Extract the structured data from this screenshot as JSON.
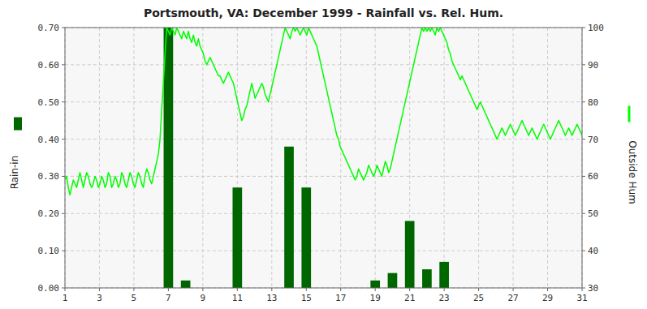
{
  "chart_data": {
    "type": "bar",
    "title": "Portsmouth, VA: December 1999 - Rainfall vs. Rel. Hum.",
    "ylabel": "Rain-in",
    "y2label": "Outside Hum",
    "xlim": [
      1,
      31
    ],
    "xticks": [
      1,
      3,
      5,
      7,
      9,
      11,
      13,
      15,
      17,
      19,
      21,
      23,
      25,
      27,
      29,
      31
    ],
    "ylim": [
      0.0,
      0.7
    ],
    "yticks": [
      {
        "value": 0.0,
        "label": "0.00"
      },
      {
        "value": 0.1,
        "label": "0.10"
      },
      {
        "value": 0.2,
        "label": "0.20"
      },
      {
        "value": 0.3,
        "label": "0.30"
      },
      {
        "value": 0.4,
        "label": "0.40"
      },
      {
        "value": 0.5,
        "label": "0.50"
      },
      {
        "value": 0.6,
        "label": "0.60"
      },
      {
        "value": 0.7,
        "label": "0.70"
      }
    ],
    "y2lim": [
      30,
      100
    ],
    "y2ticks": [
      30,
      40,
      50,
      60,
      70,
      80,
      90,
      100
    ],
    "grid": true,
    "series": [
      {
        "type": "bar",
        "color": "#006600",
        "x": [
          7,
          8,
          11,
          14,
          15,
          19,
          20,
          21,
          22,
          23
        ],
        "values": [
          0.7,
          0.02,
          0.27,
          0.38,
          0.27,
          0.02,
          0.04,
          0.18,
          0.05,
          0.07
        ]
      },
      {
        "type": "line",
        "axis": "y2",
        "color": "#00ff00",
        "x": [
          1,
          1.0968,
          1.1935,
          1.2903,
          1.3871,
          1.4839,
          1.5806,
          1.6774,
          1.7742,
          1.871,
          1.9677,
          2.0645,
          2.1613,
          2.2581,
          2.3548,
          2.4516,
          2.5484,
          2.6452,
          2.7419,
          2.8387,
          2.9355,
          3.0323,
          3.129,
          3.2258,
          3.3226,
          3.4194,
          3.5161,
          3.6129,
          3.7097,
          3.8065,
          3.9032,
          4,
          4.0968,
          4.1935,
          4.2903,
          4.3871,
          4.4839,
          4.5806,
          4.6774,
          4.7742,
          4.871,
          4.9677,
          5.0645,
          5.1613,
          5.2581,
          5.3548,
          5.4516,
          5.5484,
          5.6452,
          5.7419,
          5.8387,
          5.9355,
          6.0323,
          6.129,
          6.2258,
          6.3226,
          6.4194,
          6.5161,
          6.6129,
          6.7097,
          6.8065,
          6.9032,
          7,
          7.0968,
          7.1935,
          7.2903,
          7.3871,
          7.4839,
          7.5806,
          7.6774,
          7.7742,
          7.871,
          7.9677,
          8.0645,
          8.1613,
          8.2581,
          8.3548,
          8.4516,
          8.5484,
          8.6452,
          8.7419,
          8.8387,
          8.9355,
          9.0323,
          9.129,
          9.2258,
          9.3226,
          9.4194,
          9.5161,
          9.6129,
          9.7097,
          9.8065,
          9.9032,
          10,
          10.0968,
          10.1935,
          10.2903,
          10.3871,
          10.4839,
          10.5806,
          10.6774,
          10.7742,
          10.871,
          10.9677,
          11.0645,
          11.1613,
          11.2581,
          11.3548,
          11.4516,
          11.5484,
          11.6452,
          11.7419,
          11.8387,
          11.9355,
          12.0323,
          12.129,
          12.2258,
          12.3226,
          12.4194,
          12.5161,
          12.6129,
          12.7097,
          12.8065,
          12.9032,
          13,
          13.0968,
          13.1935,
          13.2903,
          13.3871,
          13.4839,
          13.5806,
          13.6774,
          13.7742,
          13.871,
          13.9677,
          14.0645,
          14.1613,
          14.2581,
          14.3548,
          14.4516,
          14.5484,
          14.6452,
          14.7419,
          14.8387,
          14.9355,
          15.0323,
          15.129,
          15.2258,
          15.3226,
          15.4194,
          15.5161,
          15.6129,
          15.7097,
          15.8065,
          15.9032,
          16,
          16.0968,
          16.1935,
          16.2903,
          16.3871,
          16.4839,
          16.5806,
          16.6774,
          16.7742,
          16.871,
          16.9677,
          17.0645,
          17.1613,
          17.2581,
          17.3548,
          17.4516,
          17.5484,
          17.6452,
          17.7419,
          17.8387,
          17.9355,
          18.0323,
          18.129,
          18.2258,
          18.3226,
          18.4194,
          18.5161,
          18.6129,
          18.7097,
          18.8065,
          18.9032,
          19,
          19.0968,
          19.1935,
          19.2903,
          19.3871,
          19.4839,
          19.5806,
          19.6774,
          19.7742,
          19.871,
          19.9677,
          20.0645,
          20.1613,
          20.2581,
          20.3548,
          20.4516,
          20.5484,
          20.6452,
          20.7419,
          20.8387,
          20.9355,
          21.0323,
          21.129,
          21.2258,
          21.3226,
          21.4194,
          21.5161,
          21.6129,
          21.7097,
          21.8065,
          21.9032,
          22,
          22.0968,
          22.1935,
          22.2903,
          22.3871,
          22.4839,
          22.5806,
          22.6774,
          22.7742,
          22.871,
          22.9677,
          23.0645,
          23.1613,
          23.2581,
          23.3548,
          23.4516,
          23.5484,
          23.6452,
          23.7419,
          23.8387,
          23.9355,
          24.0323,
          24.129,
          24.2258,
          24.3226,
          24.4194,
          24.5161,
          24.6129,
          24.7097,
          24.8065,
          24.9032,
          25,
          25.0968,
          25.1935,
          25.2903,
          25.3871,
          25.4839,
          25.5806,
          25.6774,
          25.7742,
          25.871,
          25.9677,
          26.0645,
          26.1613,
          26.2581,
          26.3548,
          26.4516,
          26.5484,
          26.6452,
          26.7419,
          26.8387,
          26.9355,
          27.0323,
          27.129,
          27.2258,
          27.3226,
          27.4194,
          27.5161,
          27.6129,
          27.7097,
          27.8065,
          27.9032,
          28,
          28.0968,
          28.1935,
          28.2903,
          28.3871,
          28.4839,
          28.5806,
          28.6774,
          28.7742,
          28.871,
          28.9677,
          29.0645,
          29.1613,
          29.2581,
          29.3548,
          29.4516,
          29.5484,
          29.6452,
          29.7419,
          29.8387,
          29.9355,
          30.0323,
          30.129,
          30.2258,
          30.3226,
          30.4194,
          30.5161,
          30.6129,
          30.7097,
          30.8065,
          30.9032,
          31
        ],
        "values": [
          59,
          60,
          57,
          55,
          57,
          59,
          58,
          57,
          59,
          61,
          59,
          57,
          59,
          61,
          60,
          58,
          57,
          58,
          60,
          59,
          57,
          58,
          60,
          59,
          57,
          58,
          61,
          60,
          57,
          58,
          60,
          59,
          57,
          58,
          61,
          60,
          58,
          57,
          59,
          61,
          60,
          58,
          57,
          59,
          61,
          60,
          58,
          57,
          60,
          62,
          61,
          59,
          58,
          60,
          62,
          64,
          66,
          70,
          78,
          85,
          93,
          100,
          99,
          98,
          100,
          99,
          98,
          100,
          99,
          98,
          97,
          99,
          98,
          97,
          99,
          97,
          96,
          98,
          96,
          95,
          97,
          95,
          94,
          93,
          91,
          90,
          91,
          92,
          91,
          90,
          89,
          88,
          87,
          87,
          86,
          85,
          86,
          87,
          88,
          87,
          86,
          85,
          83,
          81,
          79,
          77,
          75,
          76,
          78,
          79,
          81,
          83,
          85,
          83,
          81,
          82,
          83,
          84,
          85,
          84,
          82,
          81,
          80,
          82,
          84,
          86,
          88,
          90,
          92,
          94,
          96,
          98,
          100,
          99,
          98,
          97,
          99,
          100,
          99,
          100,
          99,
          98,
          99,
          100,
          99,
          98,
          100,
          99,
          98,
          97,
          96,
          95,
          93,
          91,
          89,
          87,
          85,
          83,
          81,
          79,
          77,
          75,
          73,
          71,
          70,
          68,
          67,
          66,
          65,
          64,
          63,
          62,
          61,
          60,
          59,
          60,
          62,
          61,
          60,
          59,
          60,
          61,
          63,
          62,
          61,
          60,
          61,
          63,
          62,
          61,
          60,
          62,
          64,
          63,
          61,
          62,
          64,
          66,
          68,
          70,
          72,
          74,
          76,
          78,
          80,
          82,
          84,
          86,
          88,
          90,
          92,
          94,
          96,
          98,
          100,
          99,
          100,
          99,
          100,
          99,
          100,
          99,
          98,
          100,
          99,
          100,
          99,
          98,
          97,
          96,
          94,
          93,
          91,
          90,
          89,
          88,
          87,
          86,
          87,
          86,
          85,
          84,
          83,
          82,
          81,
          80,
          79,
          78,
          79,
          80,
          79,
          78,
          77,
          76,
          75,
          74,
          73,
          72,
          71,
          70,
          71,
          72,
          73,
          72,
          71,
          72,
          73,
          74,
          73,
          72,
          71,
          72,
          73,
          74,
          75,
          74,
          73,
          72,
          71,
          72,
          73,
          72,
          71,
          70,
          71,
          72,
          73,
          74,
          73,
          72,
          71,
          70,
          71,
          72,
          73,
          74,
          75,
          74,
          73,
          72,
          71,
          72,
          73,
          72,
          71,
          72,
          73,
          74,
          73,
          72,
          71
        ]
      }
    ]
  }
}
